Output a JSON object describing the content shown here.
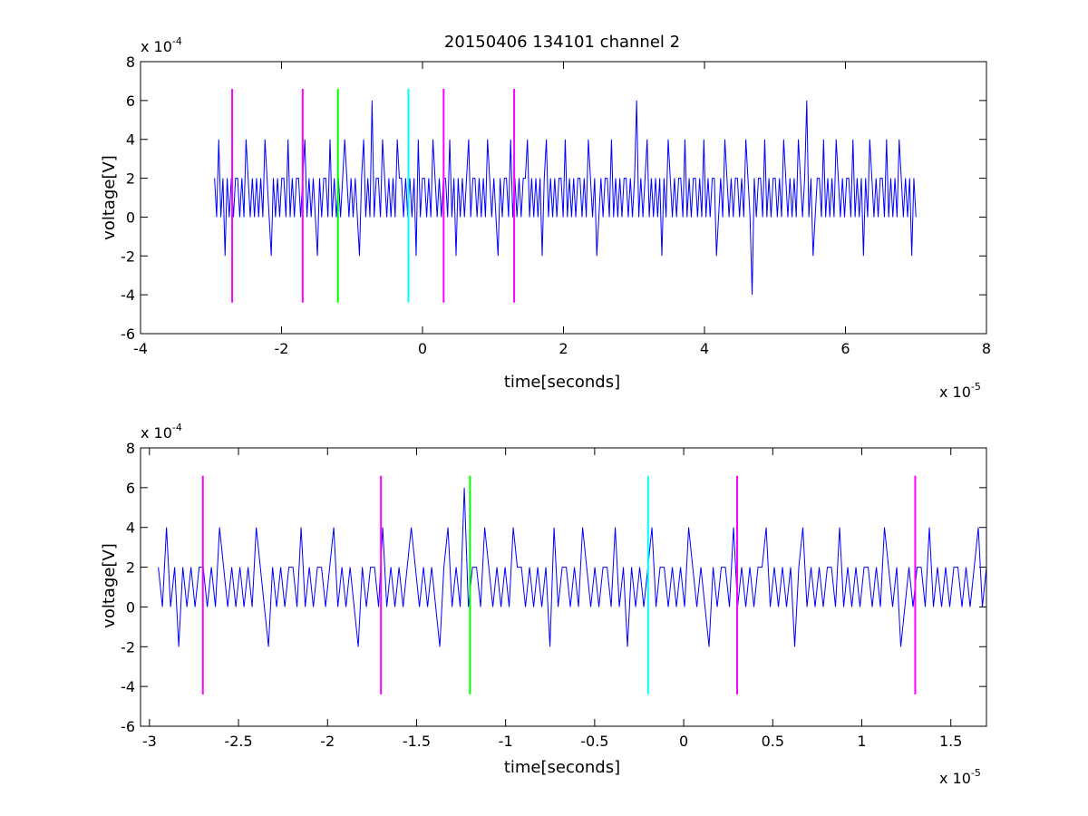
{
  "chart_data": [
    {
      "type": "line",
      "title": "20150406 134101 channel 2",
      "xlabel": "time[seconds]",
      "ylabel": "voltage[V]",
      "x_multiplier": {
        "base": "x 10",
        "exponent": "-5"
      },
      "y_multiplier": {
        "base": "x 10",
        "exponent": "-4"
      },
      "xlim": [
        -4e-05,
        8e-05
      ],
      "ylim": [
        -0.0006,
        0.0008
      ],
      "x_ticks": [
        -4e-05,
        -2e-05,
        0,
        2e-05,
        4e-05,
        6e-05,
        8e-05
      ],
      "x_tick_labels": [
        "-4",
        "-2",
        "0",
        "2",
        "4",
        "6",
        "8"
      ],
      "y_ticks": [
        -0.0006,
        -0.0004,
        -0.0002,
        0,
        0.0002,
        0.0004,
        0.0006,
        0.0008
      ],
      "y_tick_labels": [
        "-6",
        "-4",
        "-2",
        "0",
        "2",
        "4",
        "6",
        "8"
      ],
      "grid": false,
      "series": [
        {
          "color": "#0000ff",
          "x_start": -2.95e-05,
          "x_end": 7e-05,
          "quantization_step": 0.0002,
          "values_1e-4": [
            2,
            0,
            4,
            0,
            2,
            -2,
            2,
            0,
            2,
            0,
            2,
            2,
            0,
            2,
            0,
            4,
            2,
            0,
            2,
            0,
            2,
            0,
            2,
            0,
            4,
            2,
            0,
            -2,
            2,
            0,
            2,
            0,
            2,
            2,
            0,
            4,
            0,
            2,
            0,
            2,
            2,
            0,
            2,
            4,
            0,
            2,
            0,
            2,
            0,
            -2,
            2,
            0,
            2,
            2,
            0,
            4,
            0,
            2,
            0,
            2,
            0,
            2,
            4,
            2,
            0,
            2,
            0,
            2,
            0,
            -2,
            2,
            4,
            0,
            2,
            0,
            6,
            0,
            2,
            2,
            0,
            4,
            2,
            0,
            2,
            0,
            2,
            0,
            4,
            2,
            2,
            0,
            2,
            0,
            2,
            0,
            2,
            -2,
            4,
            0,
            2,
            2,
            0,
            2,
            0,
            4,
            2,
            0,
            2,
            0,
            2,
            2,
            0,
            4,
            0,
            2,
            -2,
            2,
            0,
            2,
            0,
            2,
            4,
            0,
            2,
            2,
            0,
            2,
            0,
            2,
            0,
            4,
            2,
            0,
            2,
            0,
            -2,
            2,
            0,
            2,
            2,
            0,
            4,
            0,
            2,
            0,
            2,
            0,
            2,
            2,
            4,
            0,
            2,
            0,
            2,
            0,
            2,
            -2,
            2,
            4,
            0,
            2,
            0,
            2,
            0,
            2,
            2,
            0,
            4,
            0,
            2,
            0,
            2,
            0,
            2,
            2,
            0,
            2,
            0,
            4,
            2,
            0,
            2,
            -2,
            0,
            2,
            0,
            2,
            2,
            0,
            4,
            0,
            2,
            0,
            2,
            0,
            2,
            2,
            0,
            2,
            0,
            2,
            6,
            0,
            2,
            0,
            2,
            4,
            0,
            2,
            0,
            2,
            0,
            2,
            -2,
            2,
            0,
            4,
            2,
            0,
            2,
            0,
            2,
            2,
            0,
            4,
            0,
            2,
            0,
            2,
            2,
            0,
            2,
            0,
            4,
            0,
            2,
            0,
            2,
            2,
            -2,
            0,
            2,
            0,
            4,
            2,
            0,
            2,
            0,
            2,
            2,
            0,
            2,
            0,
            4,
            2,
            0,
            -4,
            2,
            0,
            2,
            2,
            0,
            4,
            0,
            2,
            0,
            2,
            2,
            0,
            2,
            0,
            4,
            2,
            0,
            2,
            0,
            2,
            0,
            4,
            2,
            0,
            2,
            6,
            0,
            2,
            -2,
            0,
            2,
            2,
            0,
            4,
            0,
            2,
            0,
            2,
            0,
            4,
            2,
            0,
            2,
            0,
            2,
            2,
            0,
            4,
            0,
            2,
            0,
            2,
            -2,
            2,
            0,
            4,
            2,
            0,
            2,
            0,
            2,
            2,
            0,
            4,
            0,
            2,
            0,
            2,
            0,
            4,
            2,
            0,
            2,
            0,
            2,
            -2,
            2,
            0
          ]
        },
        {
          "name": "",
          "color": "#ff00ff",
          "type": "vline",
          "x": [
            -2.7e-05,
            -1.7e-05,
            3e-06,
            1.3e-05
          ],
          "y_range": [
            -0.00044,
            0.00066
          ]
        },
        {
          "name": "",
          "color": "#00ff00",
          "type": "vline",
          "x": [
            -1.2e-05
          ],
          "y_range": [
            -0.00044,
            0.00066
          ]
        },
        {
          "name": "",
          "color": "#00ffff",
          "type": "vline",
          "x": [
            -2e-06
          ],
          "y_range": [
            -0.00044,
            0.00066
          ]
        }
      ]
    },
    {
      "type": "line",
      "title": "",
      "xlabel": "time[seconds]",
      "ylabel": "voltage[V]",
      "x_multiplier": {
        "base": "x 10",
        "exponent": "-5"
      },
      "y_multiplier": {
        "base": "x 10",
        "exponent": "-4"
      },
      "xlim": [
        -3.05e-05,
        1.7e-05
      ],
      "ylim": [
        -0.0006,
        0.0008
      ],
      "x_ticks": [
        -3e-05,
        -2.5e-05,
        -2e-05,
        -1.5e-05,
        -1e-05,
        -5e-06,
        0,
        5e-06,
        1e-05,
        1.5e-05
      ],
      "x_tick_labels": [
        "-3",
        "-2.5",
        "-2",
        "-1.5",
        "-1",
        "-0.5",
        "0",
        "0.5",
        "1",
        "1.5"
      ],
      "y_ticks": [
        -0.0006,
        -0.0004,
        -0.0002,
        0,
        0.0002,
        0.0004,
        0.0006,
        0.0008
      ],
      "y_tick_labels": [
        "-6",
        "-4",
        "-2",
        "0",
        "2",
        "4",
        "6",
        "8"
      ],
      "grid": false,
      "series": [
        {
          "color": "#0000ff",
          "x_start": -2.95e-05,
          "x_end": 1.7e-05,
          "quantization_step": 0.0002,
          "values_1e-4": [
            2,
            0,
            4,
            0,
            2,
            -2,
            2,
            0,
            2,
            0,
            2,
            2,
            0,
            2,
            0,
            4,
            2,
            0,
            2,
            0,
            2,
            0,
            2,
            0,
            4,
            2,
            0,
            -2,
            2,
            0,
            2,
            0,
            2,
            2,
            0,
            4,
            0,
            2,
            0,
            2,
            2,
            0,
            2,
            4,
            0,
            2,
            0,
            2,
            0,
            -2,
            2,
            0,
            2,
            2,
            0,
            4,
            0,
            2,
            0,
            2,
            0,
            2,
            4,
            2,
            0,
            2,
            0,
            2,
            0,
            -2,
            2,
            4,
            0,
            2,
            0,
            6,
            0,
            2,
            2,
            0,
            4,
            2,
            0,
            2,
            0,
            2,
            0,
            4,
            2,
            2,
            0,
            2,
            0,
            2,
            0,
            2,
            -2,
            4,
            0,
            2,
            2,
            0,
            2,
            0,
            4,
            2,
            0,
            2,
            0,
            2,
            2,
            0,
            4,
            0,
            2,
            -2,
            2,
            0,
            2,
            0,
            2,
            4,
            0,
            2,
            2,
            0,
            2,
            0,
            2,
            0,
            4,
            2,
            0,
            2,
            0,
            -2,
            2,
            0,
            2,
            2,
            0,
            4,
            0,
            2,
            0,
            2,
            0,
            2,
            2,
            4,
            0,
            2,
            0,
            2,
            0,
            2,
            -2,
            2,
            4,
            0,
            2,
            0,
            2,
            0,
            2,
            2,
            0,
            4,
            0,
            2,
            0,
            2,
            0,
            2,
            2,
            0,
            2,
            0,
            4,
            2,
            0,
            2,
            -2,
            0,
            2,
            0,
            2,
            2,
            0,
            4,
            0,
            2,
            0,
            2,
            0,
            2,
            2,
            0,
            2,
            0,
            2,
            4,
            0,
            2
          ]
        },
        {
          "name": "",
          "color": "#ff00ff",
          "type": "vline",
          "x": [
            -2.7e-05,
            -1.7e-05,
            3e-06,
            1.3e-05
          ],
          "y_range": [
            -0.00044,
            0.00066
          ]
        },
        {
          "name": "",
          "color": "#00ff00",
          "type": "vline",
          "x": [
            -1.2e-05
          ],
          "y_range": [
            -0.00044,
            0.00066
          ]
        },
        {
          "name": "",
          "color": "#00ffff",
          "type": "vline",
          "x": [
            -2e-06
          ],
          "y_range": [
            -0.00044,
            0.00066
          ]
        }
      ]
    }
  ]
}
